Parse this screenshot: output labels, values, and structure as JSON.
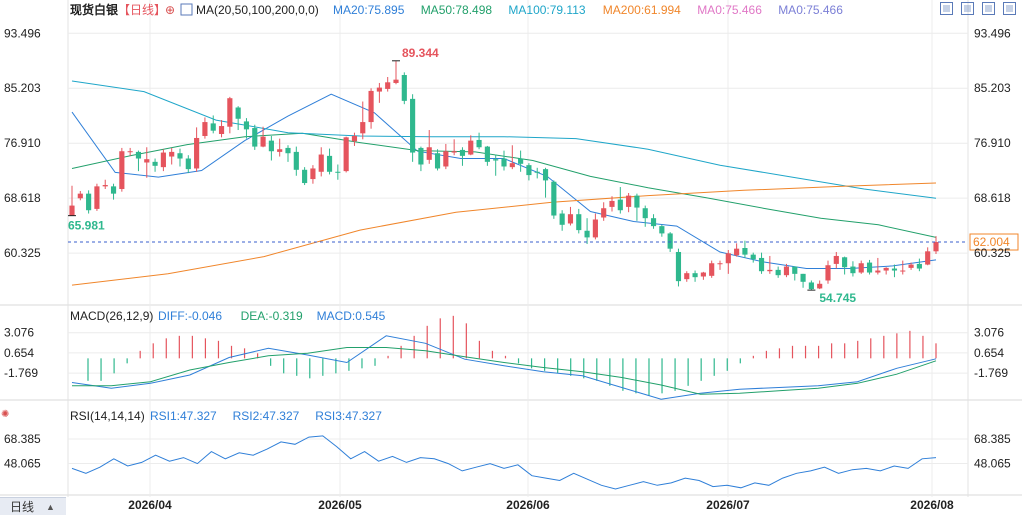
{
  "header": {
    "instrument": "现货白银",
    "period": "【日线】",
    "ma_label": "MA(20,50,100,200,0,0)",
    "ma_items": [
      {
        "text": "MA20:75.895",
        "color": "#2f7fd8"
      },
      {
        "text": "MA50:78.498",
        "color": "#22a06b"
      },
      {
        "text": "MA100:79.113",
        "color": "#1fa6c9"
      },
      {
        "text": "MA200:61.994",
        "color": "#f0862b"
      },
      {
        "text": "MA0:75.466",
        "color": "#e077c6"
      },
      {
        "text": "MA0:75.466",
        "color": "#7b7fd6"
      }
    ]
  },
  "macd_header": {
    "label": "MACD(26,12,9)",
    "items": [
      {
        "text": "DIFF:-0.046",
        "color": "#2f7fd8"
      },
      {
        "text": "DEA:-0.319",
        "color": "#22a06b"
      },
      {
        "text": "MACD:0.545",
        "color": "#2f7fd8"
      }
    ]
  },
  "rsi_header": {
    "label": "RSI(14,14,14)",
    "items": [
      {
        "text": "RSI1:47.327",
        "color": "#2f7fd8"
      },
      {
        "text": "RSI2:47.327",
        "color": "#2f7fd8"
      },
      {
        "text": "RSI3:47.327",
        "color": "#2f7fd8"
      }
    ]
  },
  "period_tab": "日线",
  "colors": {
    "up": "#e5545d",
    "down": "#2fb88e",
    "grid": "#ececec",
    "axis_text": "#222222",
    "current_price": "#f0862b",
    "annotation_high": "#e5545d",
    "annotation_low": "#2fb88e"
  },
  "chart_data": {
    "type": "candlestick",
    "x_ticks": [
      "2026/04",
      "2026/05",
      "2026/06",
      "2026/07",
      "2026/08"
    ],
    "price_axis": {
      "ticks": [
        93.496,
        85.203,
        76.91,
        68.618,
        60.325
      ],
      "range": [
        52.5,
        95.5
      ]
    },
    "current_price": 62.004,
    "annotations": [
      {
        "label": "89.344",
        "value": 89.344,
        "kind": "high"
      },
      {
        "label": "54.745",
        "value": 54.745,
        "kind": "low"
      },
      {
        "label": "65.981",
        "value": 65.981,
        "kind": "low"
      }
    ],
    "candles": [
      [
        66.0,
        67.5,
        65.98,
        70.5
      ],
      [
        68.6,
        69.3,
        68.3,
        69.7
      ],
      [
        69.3,
        66.8,
        66.3,
        69.8
      ],
      [
        67.0,
        70.4,
        66.7,
        70.8
      ],
      [
        70.4,
        70.6,
        70.0,
        71.4
      ],
      [
        70.4,
        69.3,
        68.4,
        70.8
      ],
      [
        70.0,
        75.7,
        69.6,
        76.2
      ],
      [
        75.6,
        75.7,
        75.0,
        76.2
      ],
      [
        75.6,
        74.6,
        72.7,
        75.8
      ],
      [
        74.0,
        74.5,
        71.7,
        76.3
      ],
      [
        74.1,
        73.5,
        72.6,
        74.6
      ],
      [
        73.3,
        75.5,
        72.7,
        76.0
      ],
      [
        74.9,
        75.6,
        73.7,
        76.2
      ],
      [
        75.4,
        74.6,
        73.4,
        76.1
      ],
      [
        74.6,
        73.0,
        72.4,
        75.1
      ],
      [
        73.1,
        77.7,
        72.6,
        79.3
      ],
      [
        78.0,
        80.1,
        77.6,
        80.8
      ],
      [
        79.9,
        78.8,
        78.4,
        81.1
      ],
      [
        78.3,
        79.5,
        77.8,
        80.4
      ],
      [
        79.4,
        83.7,
        78.4,
        83.9
      ],
      [
        82.3,
        80.6,
        78.9,
        82.5
      ],
      [
        80.2,
        79.0,
        77.6,
        80.7
      ],
      [
        79.2,
        76.4,
        75.9,
        79.7
      ],
      [
        76.4,
        77.9,
        76.3,
        79.4
      ],
      [
        77.3,
        75.7,
        74.3,
        78.0
      ],
      [
        75.6,
        76.0,
        74.9,
        77.6
      ],
      [
        76.2,
        75.4,
        74.1,
        76.6
      ],
      [
        75.6,
        72.9,
        72.0,
        76.4
      ],
      [
        72.9,
        70.9,
        70.6,
        73.3
      ],
      [
        71.5,
        73.1,
        70.8,
        73.6
      ],
      [
        72.6,
        75.2,
        71.9,
        76.3
      ],
      [
        75.0,
        72.6,
        72.2,
        76.1
      ],
      [
        72.6,
        72.5,
        71.4,
        73.7
      ],
      [
        72.7,
        77.8,
        72.5,
        77.9
      ],
      [
        77.2,
        78.0,
        76.5,
        78.5
      ],
      [
        78.4,
        80.1,
        77.5,
        83.2
      ],
      [
        80.1,
        84.8,
        79.1,
        85.2
      ],
      [
        84.7,
        85.3,
        83.0,
        86.0
      ],
      [
        85.1,
        86.1,
        84.7,
        86.9
      ],
      [
        86.0,
        86.5,
        85.8,
        89.3
      ],
      [
        87.2,
        83.3,
        82.8,
        87.6
      ],
      [
        83.6,
        75.5,
        74.1,
        84.3
      ],
      [
        76.2,
        73.7,
        72.7,
        76.4
      ],
      [
        74.4,
        76.3,
        73.8,
        78.9
      ],
      [
        75.4,
        73.1,
        72.8,
        76.0
      ],
      [
        73.4,
        75.7,
        73.0,
        76.8
      ],
      [
        75.5,
        75.7,
        75.1,
        77.5
      ],
      [
        75.9,
        75.0,
        73.5,
        76.3
      ],
      [
        75.2,
        77.3,
        75.1,
        78.1
      ],
      [
        77.4,
        76.3,
        76.0,
        78.5
      ],
      [
        76.4,
        74.1,
        73.5,
        76.5
      ],
      [
        74.5,
        74.3,
        72.0,
        75.2
      ],
      [
        74.6,
        73.4,
        72.8,
        75.8
      ],
      [
        73.3,
        73.9,
        73.0,
        76.6
      ],
      [
        74.6,
        73.8,
        72.6,
        75.8
      ],
      [
        73.6,
        72.1,
        71.3,
        73.9
      ],
      [
        72.6,
        72.5,
        71.6,
        73.2
      ],
      [
        73.0,
        71.3,
        68.7,
        73.2
      ],
      [
        71.1,
        66.0,
        65.5,
        71.3
      ],
      [
        66.3,
        64.6,
        63.7,
        66.8
      ],
      [
        64.8,
        66.2,
        64.5,
        67.3
      ],
      [
        66.2,
        63.8,
        63.3,
        67.0
      ],
      [
        63.7,
        62.7,
        61.7,
        65.6
      ],
      [
        62.7,
        65.4,
        62.4,
        66.3
      ],
      [
        65.7,
        67.1,
        65.2,
        68.0
      ],
      [
        67.3,
        68.2,
        66.6,
        68.9
      ],
      [
        68.4,
        66.8,
        66.3,
        70.3
      ],
      [
        67.3,
        69.0,
        66.5,
        69.4
      ],
      [
        69.0,
        67.2,
        65.2,
        69.3
      ],
      [
        67.1,
        65.6,
        64.3,
        67.5
      ],
      [
        65.6,
        64.4,
        64.0,
        66.2
      ],
      [
        64.4,
        63.3,
        62.8,
        64.6
      ],
      [
        63.3,
        61.0,
        60.5,
        63.5
      ],
      [
        60.5,
        56.1,
        55.3,
        61.0
      ],
      [
        56.4,
        57.3,
        56.0,
        57.6
      ],
      [
        57.3,
        56.7,
        56.0,
        57.7
      ],
      [
        56.8,
        57.4,
        56.3,
        57.5
      ],
      [
        56.9,
        58.8,
        56.6,
        59.2
      ],
      [
        58.8,
        58.8,
        57.8,
        59.2
      ],
      [
        58.8,
        60.3,
        57.2,
        60.8
      ],
      [
        60.0,
        61.0,
        59.8,
        61.8
      ],
      [
        61.1,
        60.1,
        59.6,
        62.2
      ],
      [
        60.1,
        59.4,
        58.9,
        60.4
      ],
      [
        59.6,
        57.6,
        57.2,
        60.4
      ],
      [
        57.6,
        57.8,
        57.2,
        59.9
      ],
      [
        57.8,
        57.0,
        56.6,
        58.3
      ],
      [
        57.0,
        58.3,
        56.7,
        58.7
      ],
      [
        58.3,
        57.2,
        56.2,
        58.3
      ],
      [
        57.2,
        56.0,
        55.1,
        57.2
      ],
      [
        55.9,
        54.9,
        54.7,
        56.2
      ],
      [
        55.0,
        55.7,
        54.9,
        56.2
      ],
      [
        56.2,
        58.5,
        55.7,
        59.2
      ],
      [
        58.7,
        59.9,
        58.0,
        60.5
      ],
      [
        59.7,
        58.2,
        57.1,
        59.8
      ],
      [
        58.3,
        57.3,
        56.8,
        59.1
      ],
      [
        57.4,
        58.8,
        57.2,
        59.2
      ],
      [
        58.9,
        57.4,
        57.1,
        59.3
      ],
      [
        57.4,
        57.7,
        57.1,
        59.6
      ],
      [
        57.7,
        58.1,
        57.1,
        58.2
      ],
      [
        58.0,
        57.7,
        56.7,
        58.6
      ],
      [
        57.7,
        57.7,
        57.1,
        59.2
      ],
      [
        58.1,
        58.6,
        57.8,
        58.9
      ],
      [
        58.7,
        58.0,
        57.6,
        59.5
      ],
      [
        58.6,
        60.6,
        58.5,
        61.2
      ],
      [
        60.6,
        62.0,
        60.2,
        62.9
      ]
    ],
    "ma_series": [
      {
        "name": "MA20",
        "color": "#2f7fd8",
        "values": [
          81.6,
          72.5,
          71.8,
          72.8,
          77.3,
          81.0,
          84.3,
          81.5,
          75.7,
          74.6,
          74.6,
          71.9,
          66.6,
          65.1,
          64.4,
          60.5,
          59.0,
          58.0,
          58.0,
          58.4,
          59.3
        ]
      },
      {
        "name": "MA50",
        "color": "#22a06b",
        "values": [
          73.1,
          75.0,
          76.7,
          77.9,
          78.4,
          77.0,
          75.8,
          75.6,
          74.3,
          71.9,
          70.2,
          68.7,
          67.1,
          65.6,
          64.6,
          62.7
        ]
      },
      {
        "name": "MA100",
        "color": "#1fa6c9",
        "values": [
          86.3,
          84.7,
          80.4,
          78.5,
          78.0,
          77.9,
          77.9,
          77.6,
          76.0,
          73.6,
          71.8,
          70.0,
          68.6
        ]
      },
      {
        "name": "MA200",
        "color": "#f0862b",
        "values": [
          55.5,
          57.2,
          59.8,
          63.8,
          66.5,
          68.0,
          69.0,
          69.8,
          70.4,
          70.9
        ]
      }
    ],
    "macd": {
      "ticks": [
        3.076,
        0.654,
        -1.769
      ],
      "range": [
        -5.0,
        4.0
      ],
      "diff": [
        -2.9,
        -3.6,
        -3.0,
        -2.0,
        0.1,
        1.2,
        0.4,
        -0.5,
        2.7,
        1.8,
        -0.1,
        -0.9,
        -1.6,
        -2.1,
        -3.5,
        -4.9,
        -4.2,
        -3.7,
        -3.5,
        -3.3,
        -2.8,
        -1.2,
        -0.05
      ],
      "dea": [
        -3.3,
        -3.3,
        -2.8,
        -1.4,
        -0.5,
        0.3,
        0.6,
        1.3,
        1.3,
        0.9,
        0.2,
        -0.5,
        -1.1,
        -1.6,
        -2.3,
        -3.2,
        -4.3,
        -4.2,
        -3.9,
        -3.6,
        -3.0,
        -1.9,
        -0.3
      ],
      "hist_points": [
        -0.9,
        -0.9,
        -0.6,
        -0.2,
        0.3,
        0.6,
        0.8,
        0.9,
        0.9,
        0.8,
        0.7,
        0.5,
        0.4,
        0.2,
        -0.3,
        -0.6,
        -0.7,
        -0.8,
        -0.7,
        -0.6,
        -0.5,
        -0.4,
        -0.3,
        0.1,
        0.5,
        0.9,
        1.3,
        1.6,
        1.7,
        1.4,
        0.7,
        0.3,
        0.1,
        -0.2,
        -0.4,
        -0.5,
        -0.6,
        -0.7,
        -0.8,
        -0.9,
        -1.1,
        -1.3,
        -1.4,
        -1.5,
        -1.4,
        -1.3,
        -1.1,
        -0.9,
        -0.7,
        -0.5,
        -0.2,
        0.1,
        0.3,
        0.4,
        0.5,
        0.5,
        0.5,
        0.6,
        0.6,
        0.7,
        0.8,
        0.9,
        1.0,
        1.1,
        0.9,
        0.6
      ]
    },
    "rsi": {
      "ticks": [
        68.385,
        48.065
      ],
      "range": [
        22,
        80
      ],
      "values": [
        44,
        40,
        45,
        52,
        46,
        49,
        55,
        50,
        53,
        48,
        58,
        52,
        57,
        55,
        60,
        66,
        64,
        70,
        71,
        62,
        52,
        58,
        50,
        54,
        49,
        53,
        52,
        48,
        42,
        45,
        48,
        44,
        47,
        38,
        36,
        34,
        40,
        35,
        30,
        27,
        30,
        33,
        30,
        32,
        36,
        34,
        29,
        30,
        28,
        32,
        30,
        36,
        40,
        42,
        45,
        40,
        43,
        44,
        42,
        46,
        44,
        52,
        53
      ]
    }
  }
}
